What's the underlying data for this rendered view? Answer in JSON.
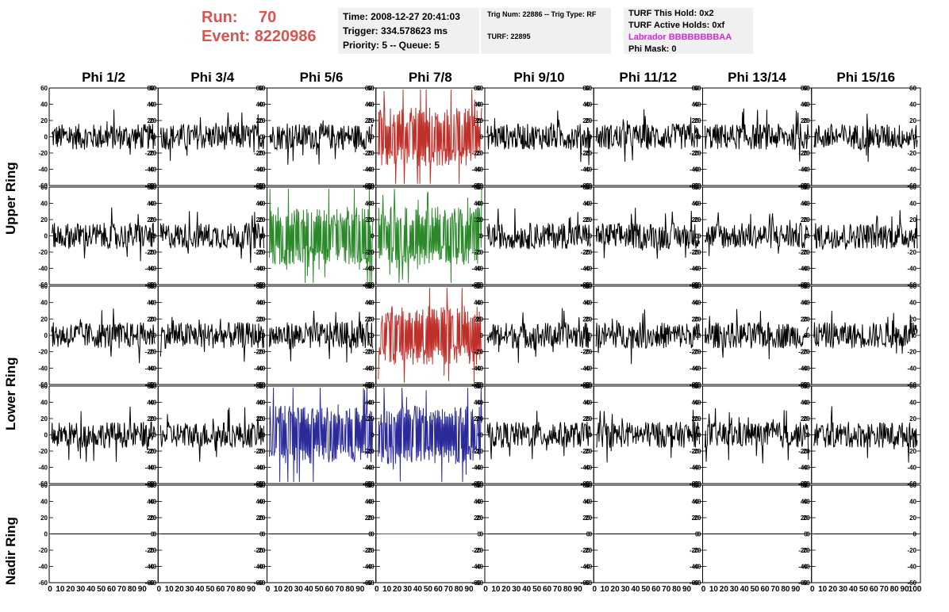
{
  "header": {
    "run_label": "Run:",
    "run_value": "70",
    "event_label": "Event:",
    "event_value": "8220986"
  },
  "time_box": {
    "time": "Time: 2008-12-27 20:41:03",
    "trigger": "Trigger: 334.578623 ms",
    "priority": "Priority: 5 -- Queue: 5"
  },
  "trig_box": {
    "trig": "Trig Num: 22886 -- Trig Type: RF",
    "turf": "TURF: 22895"
  },
  "turf_box": {
    "this_hold": "TURF This Hold: 0x2",
    "active_holds": "TURF Active Holds: 0xf",
    "labrador": "Labrador BBBBBBBBAA",
    "phi_mask": "Phi Mask: 0"
  },
  "columns": [
    "Phi 1/2",
    "Phi 3/4",
    "Phi 5/6",
    "Phi 7/8",
    "Phi 9/10",
    "Phi 11/12",
    "Phi 13/14",
    "Phi 15/16"
  ],
  "ring_labels": {
    "upper": "Upper Ring",
    "lower": "Lower Ring",
    "nadir": "Nadir Ring"
  },
  "axis": {
    "y_ticks": [
      60,
      40,
      20,
      0,
      -20,
      -40,
      -60
    ],
    "ylim": [
      -60,
      60
    ],
    "x_tick_text": [
      "0",
      "10",
      "20",
      "30",
      "40",
      "50",
      "60",
      "70",
      "80",
      "90",
      "100"
    ],
    "xlim": [
      0,
      100
    ]
  },
  "colors": {
    "header_red": "#d9534f",
    "trace_default": "#000000",
    "trace_red": "#c0302a",
    "trace_green": "#2a8a2a",
    "trace_blue": "#2a2a9a",
    "labrador_magenta": "#e020e0"
  },
  "highlighted_panels": [
    {
      "row": 0,
      "col": 3,
      "color": "red"
    },
    {
      "row": 1,
      "col": 2,
      "color": "green"
    },
    {
      "row": 1,
      "col": 3,
      "color": "green"
    },
    {
      "row": 2,
      "col": 3,
      "color": "red"
    },
    {
      "row": 3,
      "col": 2,
      "color": "blue"
    },
    {
      "row": 3,
      "col": 3,
      "color": "blue"
    },
    {
      "row": 4,
      "col": 3,
      "color": "red"
    }
  ]
}
